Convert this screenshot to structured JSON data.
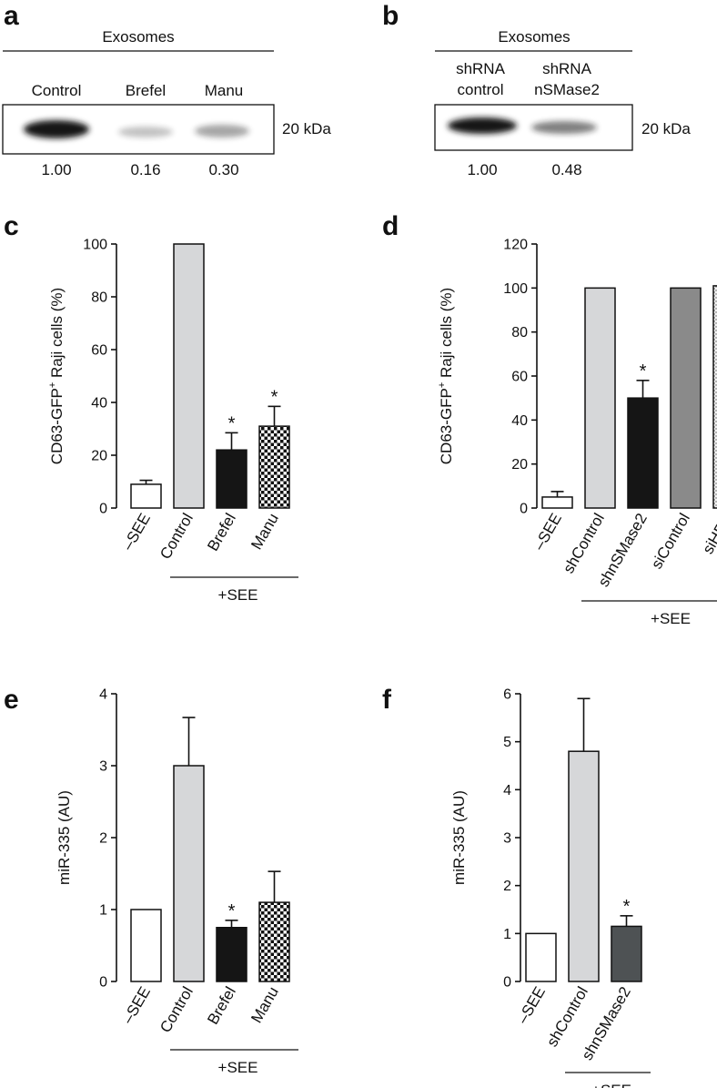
{
  "blots": [
    {
      "letter": "a",
      "header": "Exosomes",
      "lanes": [
        "Control",
        "Brefel",
        "Manu"
      ],
      "marker": "20 kDa",
      "quant": [
        "1.00",
        "0.16",
        "0.30"
      ],
      "intensity": [
        1.0,
        0.16,
        0.3
      ]
    },
    {
      "letter": "b",
      "header": "Exosomes",
      "lanes": [
        [
          "shRNA",
          "control"
        ],
        [
          "shRNA",
          "nSMase2"
        ]
      ],
      "marker": "20 kDa",
      "quant": [
        "1.00",
        "0.48"
      ],
      "intensity": [
        1.0,
        0.48
      ]
    }
  ],
  "chart_data": [
    {
      "letter": "c",
      "type": "bar",
      "ylabel": "CD63-GFP+ Raji cells (%)",
      "ylim": [
        0,
        100
      ],
      "yticks": [
        0,
        20,
        40,
        60,
        80,
        100
      ],
      "categories": [
        "–SEE",
        "Control",
        "Brefel",
        "Manu"
      ],
      "values": [
        9,
        100,
        22,
        31
      ],
      "errors": [
        1.5,
        0,
        6.5,
        7.5
      ],
      "significant": [
        false,
        false,
        true,
        true
      ],
      "fills": [
        "white",
        "lightgray",
        "black",
        "checker"
      ],
      "group_label": "+SEE",
      "group_span": [
        1,
        3
      ]
    },
    {
      "letter": "d",
      "type": "bar",
      "ylabel": "CD63-GFP+ Raji cells (%)",
      "ylim": [
        0,
        120
      ],
      "yticks": [
        0,
        20,
        40,
        60,
        80,
        100,
        120
      ],
      "categories": [
        "–SEE",
        "shControl",
        "shnSMase2",
        "siControl",
        "siHRS"
      ],
      "values": [
        5,
        100,
        50,
        100,
        101
      ],
      "errors": [
        2.5,
        0,
        8,
        0,
        1.5
      ],
      "significant": [
        false,
        false,
        true,
        false,
        false
      ],
      "fills": [
        "white",
        "lightgray",
        "black",
        "darkgray",
        "dotted"
      ],
      "group_label": "+SEE",
      "group_span": [
        1,
        4
      ]
    },
    {
      "letter": "e",
      "type": "bar",
      "ylabel": "miR-335 (AU)",
      "ylim": [
        0,
        4
      ],
      "yticks": [
        0,
        1,
        2,
        3,
        4
      ],
      "categories": [
        "–SEE",
        "Control",
        "Brefel",
        "Manu"
      ],
      "values": [
        1,
        3,
        0.75,
        1.1
      ],
      "errors": [
        0,
        0.67,
        0.1,
        0.43
      ],
      "significant": [
        false,
        false,
        true,
        false
      ],
      "fills": [
        "white",
        "lightgray",
        "black",
        "checker"
      ],
      "group_label": "+SEE",
      "group_span": [
        1,
        3
      ]
    },
    {
      "letter": "f",
      "type": "bar",
      "ylabel": "miR-335 (AU)",
      "ylim": [
        0,
        6
      ],
      "yticks": [
        0,
        1,
        2,
        3,
        4,
        5,
        6
      ],
      "categories": [
        "–SEE",
        "shControl",
        "shnSMase2"
      ],
      "values": [
        1,
        4.8,
        1.15
      ],
      "errors": [
        0,
        1.1,
        0.22
      ],
      "significant": [
        false,
        false,
        true
      ],
      "fills": [
        "white",
        "lightgray",
        "darkslate"
      ],
      "group_label": "+SEE",
      "group_span": [
        1,
        2
      ]
    }
  ],
  "significance_mark": "*",
  "colors": {
    "white": "#ffffff",
    "lightgray": "#d6d7d9",
    "black": "#151515",
    "darkgray": "#8a8a8a",
    "darkslate": "#4e5254",
    "dotted": "#f2f2f2"
  }
}
